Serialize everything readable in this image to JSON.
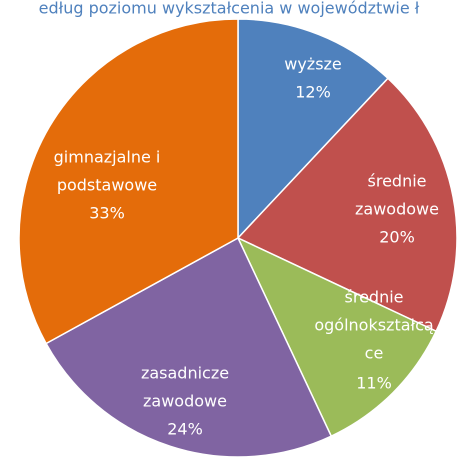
{
  "chart_data": {
    "type": "pie",
    "title": "edług poziomu wykształcenia w województwie ł",
    "categories": [
      [
        "wyższe"
      ],
      [
        "średnie",
        "zawodowe"
      ],
      [
        "średnie",
        "ogólnokształcą",
        "ce"
      ],
      [
        "zasadnicze",
        "zawodowe"
      ],
      [
        "gimnazjalne i",
        "podstawowe"
      ]
    ],
    "values": [
      12,
      20,
      11,
      24,
      33
    ],
    "value_labels": [
      "12%",
      "20%",
      "11%",
      "24%",
      "33%"
    ],
    "colors": [
      "#4f81bd",
      "#c0504d",
      "#9bbb59",
      "#8064a2",
      "#e46c0a"
    ]
  }
}
